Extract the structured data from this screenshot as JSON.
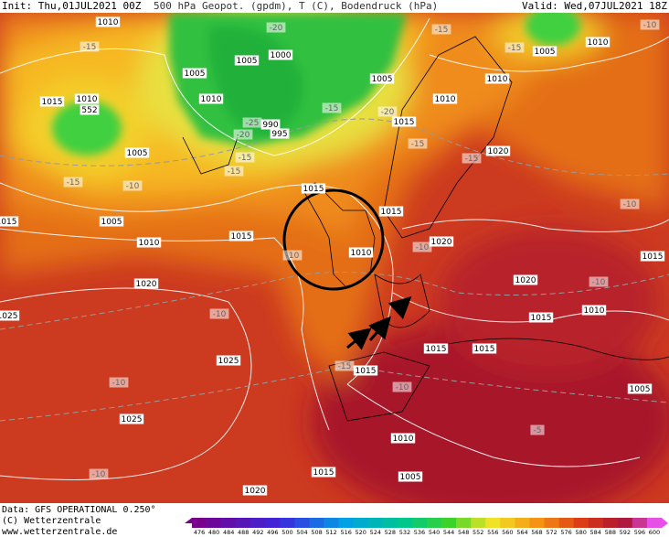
{
  "header": {
    "init": "Init: Thu,01JUL2021 00Z",
    "title": "500 hPa Geopot. (gpdm), T (C), Bodendruck (hPa)",
    "valid": "Valid: Wed,07JUL2021 18Z"
  },
  "footer": {
    "data": "Data: GFS OPERATIONAL 0.250°",
    "copyright": "(C) Wetterzentrale",
    "url": "www.wetterzentrale.de"
  },
  "colorbar": {
    "ticks": [
      476,
      480,
      484,
      488,
      492,
      496,
      500,
      504,
      508,
      512,
      516,
      520,
      524,
      528,
      532,
      536,
      540,
      544,
      548,
      552,
      556,
      560,
      564,
      568,
      572,
      576,
      580,
      584,
      588,
      592,
      596,
      600
    ]
  },
  "map_labels": [
    "1010",
    "-15",
    "1005",
    "1000",
    "1005",
    "1010",
    "1010",
    "552",
    "1015",
    "1005",
    "-10",
    "-15",
    "1005",
    "1010",
    "990",
    "995",
    "-20",
    "-25",
    "-15",
    "-15",
    "-20",
    "-20",
    "-15",
    "1005",
    "1010",
    "1015",
    "-15",
    "1015",
    "1015",
    "1015",
    "1010",
    "-10",
    "1020",
    "-10",
    "1020",
    "1020",
    "-15",
    "1010",
    "1020",
    "1010",
    "1005",
    "-15",
    "-15",
    "-10",
    "1025",
    "-10",
    "1025",
    "-10",
    "1025",
    "-10",
    "1020",
    "1015",
    "1005",
    "1010",
    "1015",
    "1015",
    "1015",
    "-15",
    "-10",
    "-5",
    "1005",
    "1015",
    "1010",
    "-10",
    "1015",
    "-10",
    "1015"
  ]
}
